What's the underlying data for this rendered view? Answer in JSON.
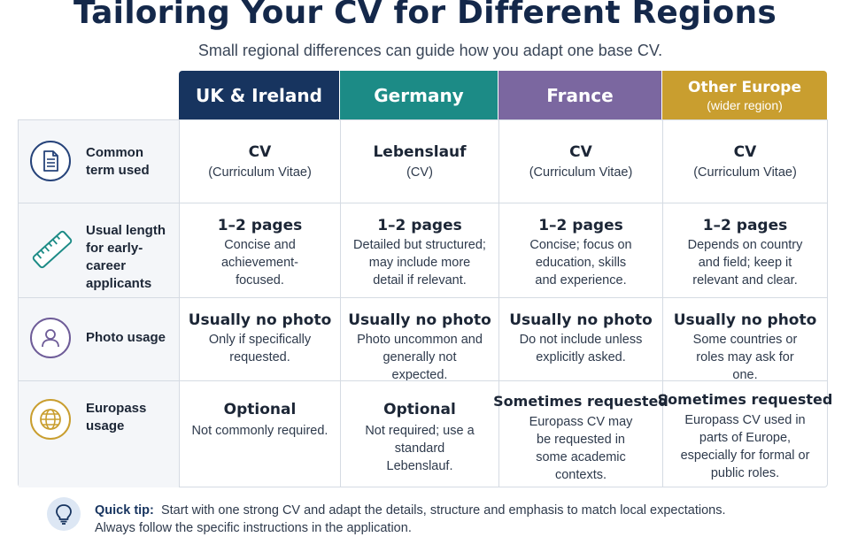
{
  "title": "Tailoring Your CV for Different Regions",
  "subtitle": "Small regional differences can guide how you adapt one base CV.",
  "columns": [
    {
      "name": "UK & Ireland",
      "sub": "",
      "color": "#17345f"
    },
    {
      "name": "Germany",
      "sub": "",
      "color": "#1c8b86"
    },
    {
      "name": "France",
      "sub": "",
      "color": "#7b67a0"
    },
    {
      "name": "Other Europe",
      "sub": "(wider region)",
      "color": "#c99e2f"
    }
  ],
  "rows": [
    {
      "label": "Common term used",
      "icon": "document-icon",
      "cells": [
        {
          "main": "CV",
          "detail": "(Curriculum Vitae)"
        },
        {
          "main": "Lebenslauf",
          "detail": "(CV)"
        },
        {
          "main": "CV",
          "detail": "(Curriculum Vitae)"
        },
        {
          "main": "CV",
          "detail": "(Curriculum Vitae)"
        }
      ]
    },
    {
      "label": "Usual length for early-career applicants",
      "icon": "ruler-icon",
      "cells": [
        {
          "main": "1–2 pages",
          "detail": "Concise and achievement-focused."
        },
        {
          "main": "1–2 pages",
          "detail": "Detailed but structured; may include more detail if relevant."
        },
        {
          "main": "1–2 pages",
          "detail": "Concise; focus on education, skills and experience."
        },
        {
          "main": "1–2 pages",
          "detail": "Depends on country and field; keep it relevant and clear."
        }
      ]
    },
    {
      "label": "Photo usage",
      "icon": "person-icon",
      "cells": [
        {
          "main": "Usually no photo",
          "detail": "Only if specifically requested."
        },
        {
          "main": "Usually no photo",
          "detail": "Photo uncommon and generally not expected."
        },
        {
          "main": "Usually no photo",
          "detail": "Do not include unless explicitly asked."
        },
        {
          "main": "Usually no photo",
          "detail": "Some countries or roles may ask for one."
        }
      ]
    },
    {
      "label": "Europass usage",
      "icon": "globe-icon",
      "cells": [
        {
          "main": "Optional",
          "detail": "Not commonly required."
        },
        {
          "main": "Optional",
          "detail": "Not required; use a standard Lebenslauf."
        },
        {
          "main": "Sometimes requested",
          "detail": "Europass CV may be requested in some academic contexts."
        },
        {
          "main": "Sometimes requested",
          "detail": "Europass CV used in parts of Europe, especially for formal or public roles."
        }
      ]
    }
  ],
  "tip": {
    "label": "Quick tip:",
    "line1": "Start with one strong CV and adapt the details, structure and emphasis to match local expectations.",
    "line2": "Always follow the specific instructions in the application.",
    "icon": "lightbulb-icon"
  }
}
